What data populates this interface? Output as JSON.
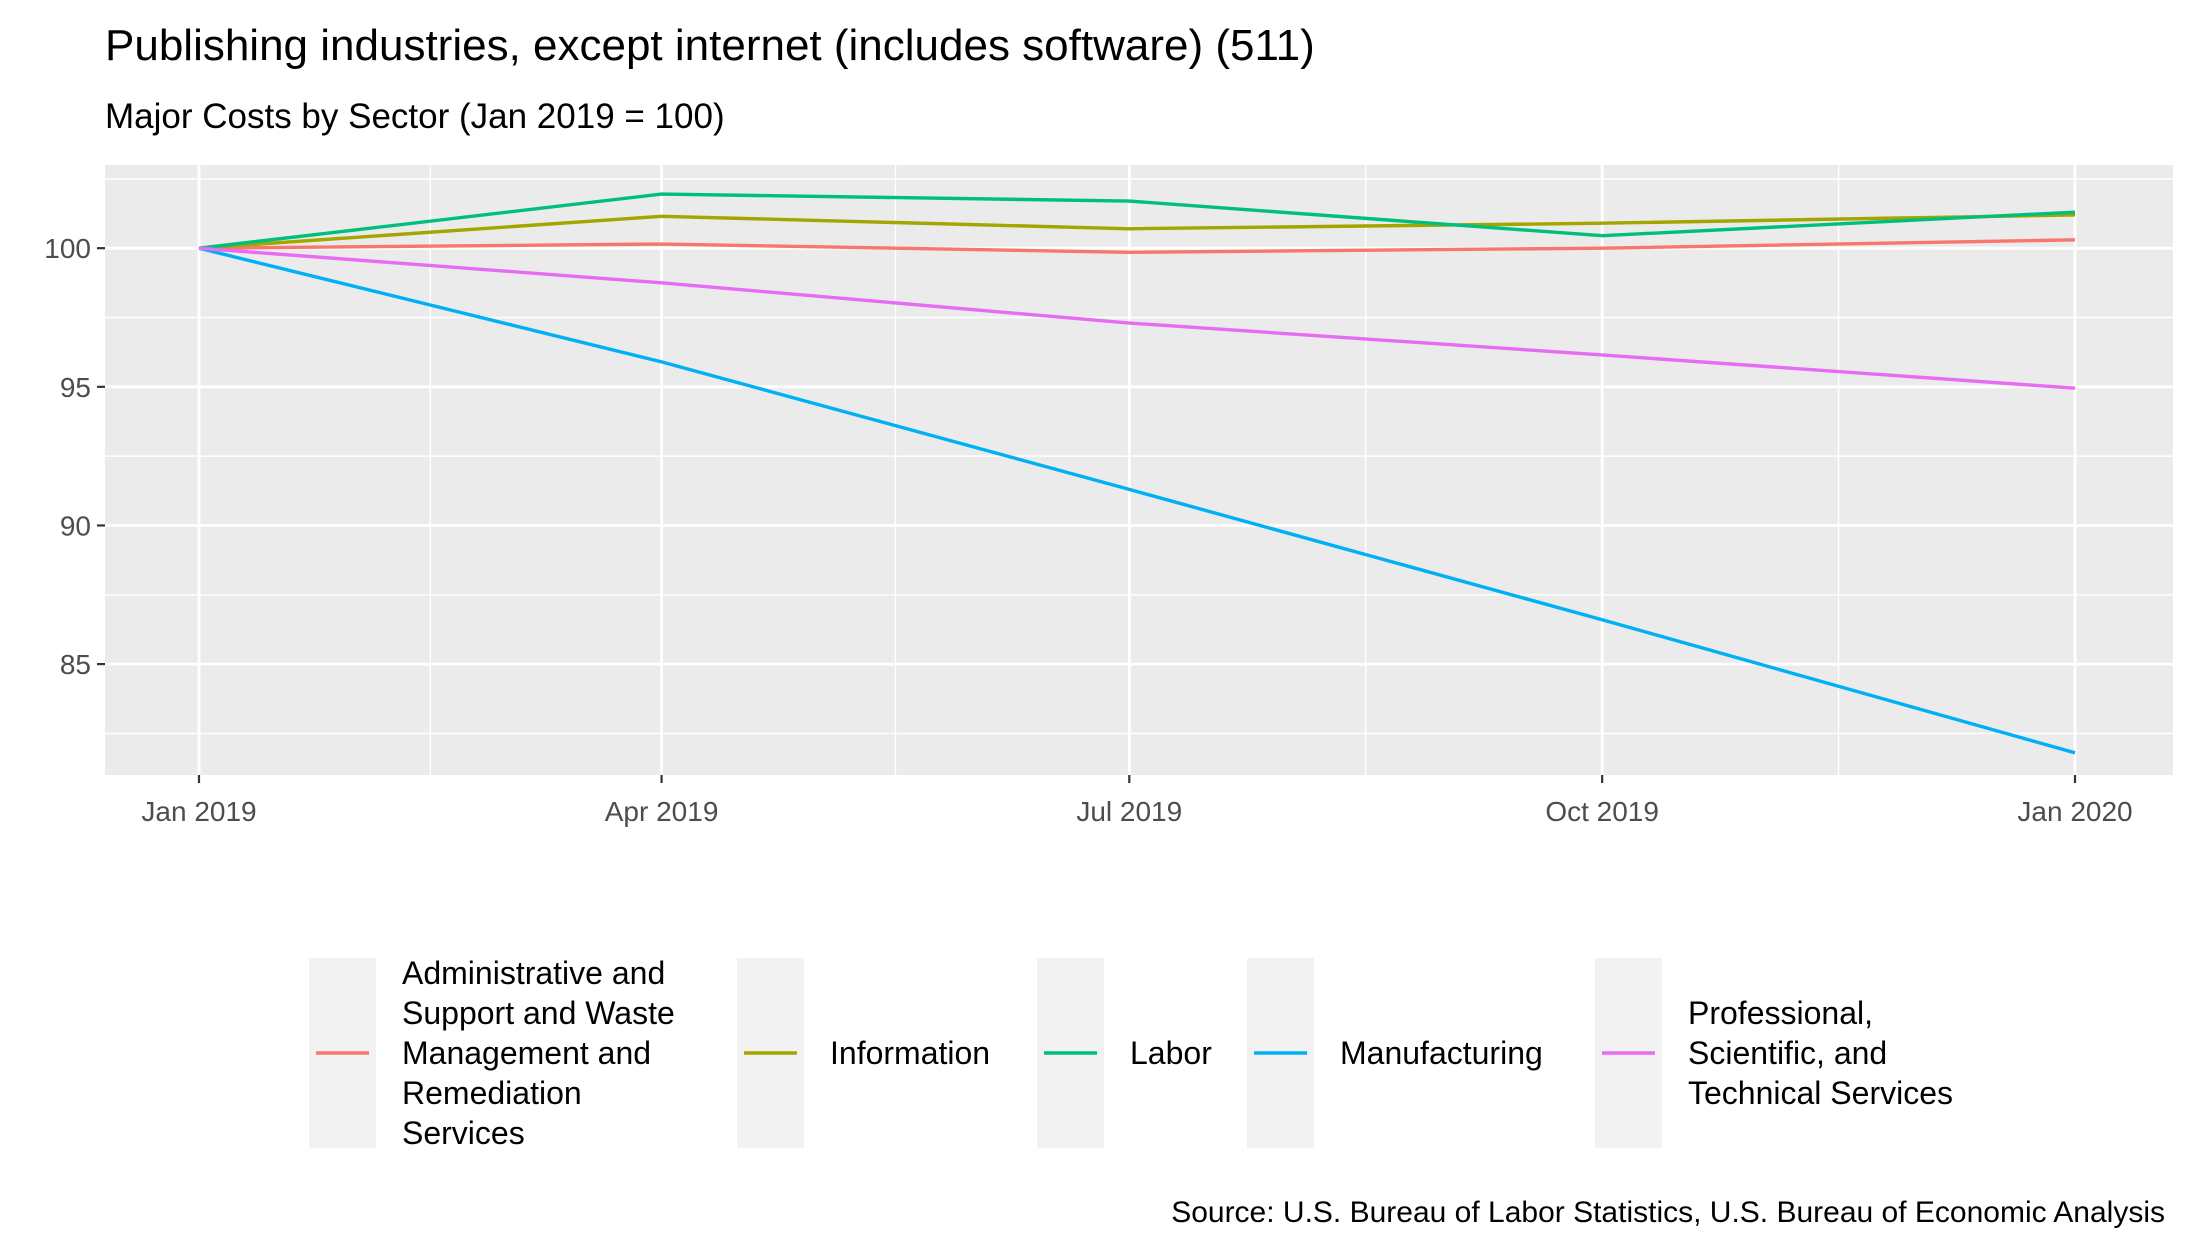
{
  "chart_data": {
    "type": "line",
    "title": "Publishing industries, except internet (includes software) (511)",
    "subtitle": "Major Costs by Sector (Jan 2019 = 100)",
    "caption": "Source: U.S. Bureau of Labor Statistics, U.S. Bureau of Economic Analysis",
    "xlabel": "",
    "ylabel": "",
    "x": [
      "2019-01-01",
      "2019-04-01",
      "2019-07-01",
      "2019-10-01",
      "2020-01-01"
    ],
    "x_tick_labels": [
      "Jan 2019",
      "Apr 2019",
      "Jul 2019",
      "Oct 2019",
      "Jan 2020"
    ],
    "y_ticks": [
      85,
      90,
      95,
      100
    ],
    "ylim": [
      81,
      103
    ],
    "grid": true,
    "legend_position": "bottom",
    "series": [
      {
        "name": "Administrative and Support and Waste Management and Remediation Services",
        "label_lines": [
          "Administrative and",
          "Support and Waste",
          "Management and",
          "Remediation",
          "Services"
        ],
        "color": "#F8766D",
        "values": [
          100.0,
          100.15,
          99.85,
          100.0,
          100.3
        ]
      },
      {
        "name": "Information",
        "label_lines": [
          "Information"
        ],
        "color": "#A3A500",
        "values": [
          100.0,
          101.15,
          100.7,
          100.9,
          101.2
        ]
      },
      {
        "name": "Labor",
        "label_lines": [
          "Labor"
        ],
        "color": "#00BF7D",
        "values": [
          100.0,
          101.95,
          101.7,
          100.45,
          101.3
        ]
      },
      {
        "name": "Manufacturing",
        "label_lines": [
          "Manufacturing"
        ],
        "color": "#00B0F6",
        "values": [
          100.0,
          95.9,
          91.3,
          86.6,
          81.8
        ]
      },
      {
        "name": "Professional, Scientific, and Technical Services",
        "label_lines": [
          "Professional,",
          "Scientific, and",
          "Technical Services"
        ],
        "color": "#E76BF3",
        "values": [
          100.0,
          98.75,
          97.3,
          96.15,
          94.95
        ]
      }
    ]
  }
}
